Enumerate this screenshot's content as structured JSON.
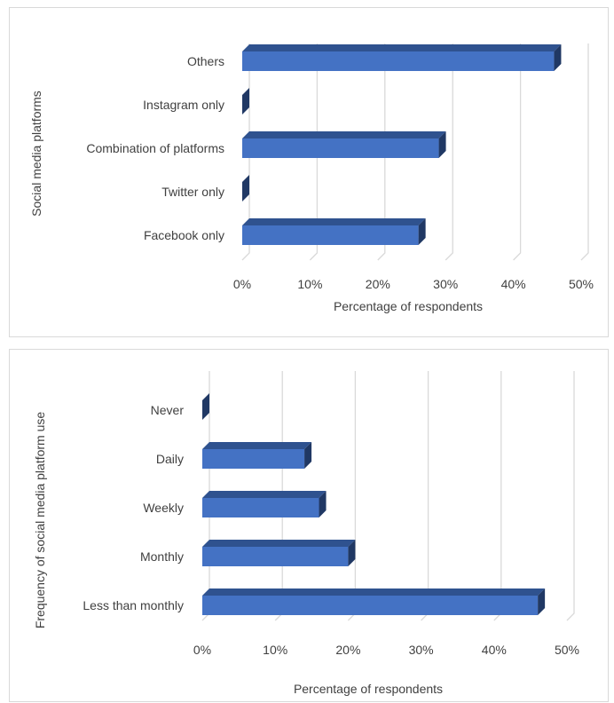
{
  "chart_data": [
    {
      "type": "bar",
      "orientation": "horizontal",
      "style": "3d",
      "categories": [
        "Others",
        "Instagram only",
        "Combination of platforms",
        "Twitter only",
        "Facebook only"
      ],
      "values": [
        46,
        0,
        29,
        0,
        26
      ],
      "xlabel": "Percentage of respondents",
      "ylabel": "Social media platforms",
      "xlim": [
        0,
        50
      ],
      "xticks": [
        "0%",
        "10%",
        "20%",
        "30%",
        "40%",
        "50%"
      ],
      "grid": true,
      "bar_color": "#4472c4"
    },
    {
      "type": "bar",
      "orientation": "horizontal",
      "style": "3d",
      "categories": [
        "Never",
        "Daily",
        "Weekly",
        "Monthly",
        "Less than monthly"
      ],
      "values": [
        0,
        14,
        16,
        20,
        46
      ],
      "xlabel": "Percentage of respondents",
      "ylabel": "Frequency of social media platform use",
      "xlim": [
        0,
        50
      ],
      "xticks": [
        "0%",
        "10%",
        "20%",
        "30%",
        "40%",
        "50%"
      ],
      "grid": true,
      "bar_color": "#4472c4"
    }
  ]
}
